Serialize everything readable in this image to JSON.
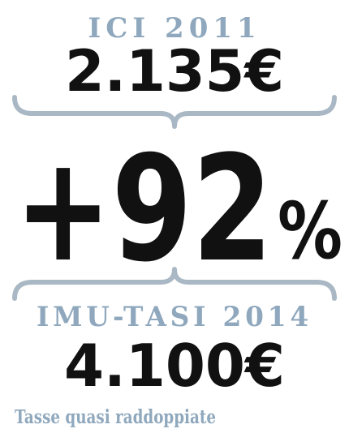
{
  "header": {
    "label": "ICI 2011",
    "amount": "2.135€"
  },
  "change": {
    "number": "+92",
    "unit": "%"
  },
  "footer_block": {
    "label": "IMU-TASI 2014",
    "amount": "4.100€"
  },
  "caption": "Tasse quasi raddoppiate"
}
